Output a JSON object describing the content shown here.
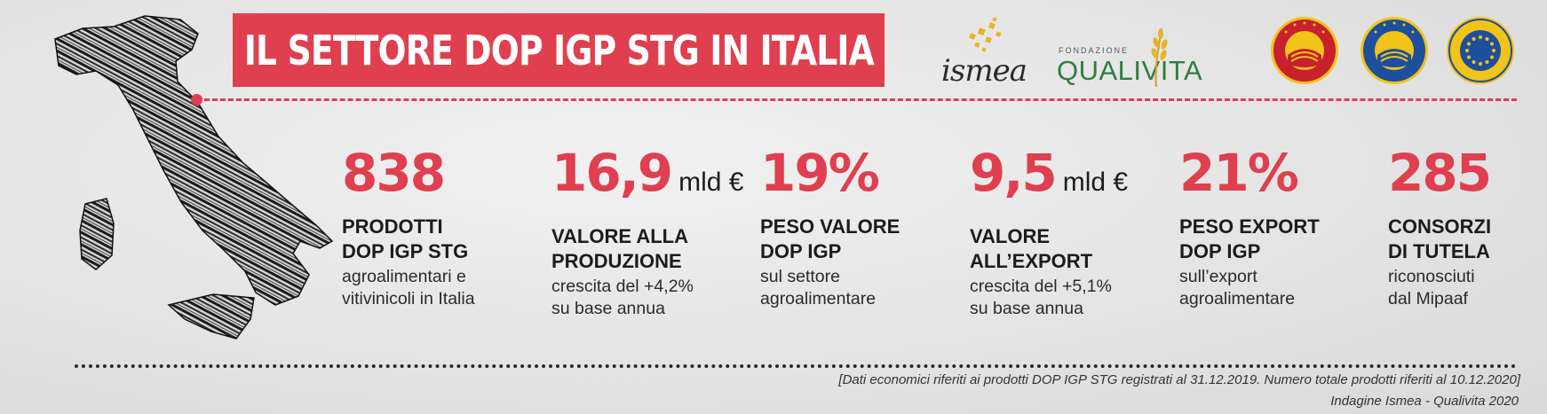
{
  "title": "IL SETTORE DOP IGP STG IN ITALIA",
  "logos": {
    "ismea": "ismea",
    "qualivita_small": "FONDAZIONE",
    "qualivita": "QUALIVITA"
  },
  "colors": {
    "accent_red": "#e03f4f",
    "qualivita_green": "#2f7d3f",
    "ismea_gold": "#e5b526",
    "seal_dop_red": "#c8202e",
    "seal_blue": "#1d4f9c",
    "seal_yellow": "#f2c319"
  },
  "stats": [
    {
      "number": "838",
      "unit": "",
      "label1": "PRODOTTI",
      "label2": "DOP IGP STG",
      "desc1": "agroalimentari e",
      "desc2": "vitivinicoli in Italia"
    },
    {
      "number": "16,9",
      "unit": "mld €",
      "label1": "VALORE ALLA",
      "label2": "PRODUZIONE",
      "desc1": "crescita del +4,2%",
      "desc2": "su base annua"
    },
    {
      "number": "19%",
      "unit": "",
      "label1": "PESO VALORE",
      "label2": "DOP IGP",
      "desc1": "sul settore",
      "desc2": "agroalimentare"
    },
    {
      "number": "9,5",
      "unit": "mld €",
      "label1": "VALORE",
      "label2": "ALL’EXPORT",
      "desc1": "crescita del +5,1%",
      "desc2": "su base annua"
    },
    {
      "number": "21%",
      "unit": "",
      "label1": "PESO EXPORT",
      "label2": "DOP IGP",
      "desc1": "sull’export",
      "desc2": "agroalimentare"
    },
    {
      "number": "285",
      "unit": "",
      "label1": "CONSORZI",
      "label2": "DI TUTELA",
      "desc1": "riconosciuti",
      "desc2": "dal Mipaaf"
    }
  ],
  "footer": {
    "note": "[Dati economici riferiti ai prodotti DOP IGP STG registrati al 31.12.2019. Numero totale prodotti riferiti al 10.12.2020]",
    "source": "Indagine Ismea - Qualivita 2020"
  }
}
